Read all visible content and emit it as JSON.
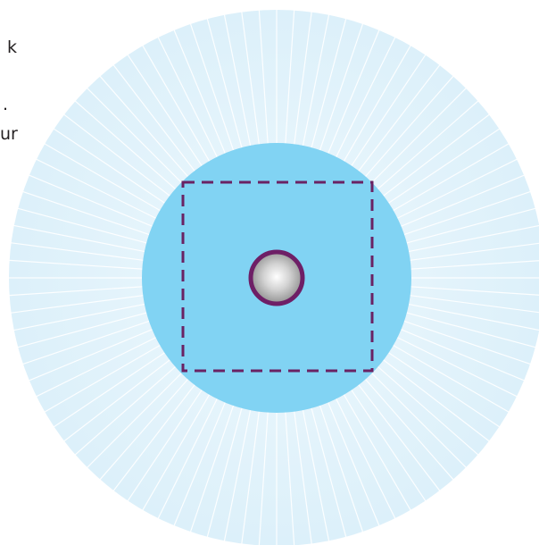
{
  "text_fragments": [
    "k",
    ".",
    "ur"
  ],
  "colors": {
    "background": "#ffffff",
    "outer_disc": "#e4f3fb",
    "outer_disc_edge": "#d3ecf8",
    "ray_lines": "#ffffff",
    "inner_disc": "#81d3f3",
    "dashed_square": "#6a2263",
    "center_ring": "#6e1f66",
    "center_sphere_light": "#ffffff",
    "center_sphere_dark": "#8e8e8e",
    "text": "#231f20"
  },
  "icons": {
    "center": "gray-sphere-in-purple-ring"
  }
}
